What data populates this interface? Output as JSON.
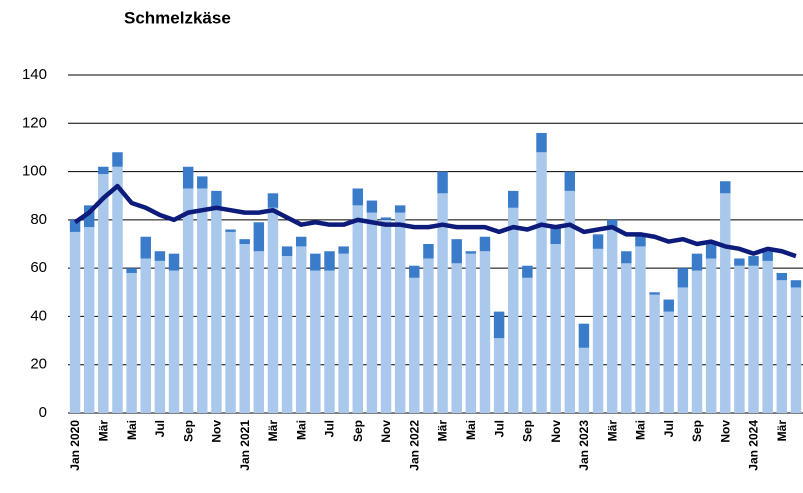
{
  "chart_data": {
    "type": "bar",
    "stacked": true,
    "title": "Schmelzkäse",
    "categories": [
      "Jan 2020",
      null,
      "Mär",
      null,
      "Mai",
      null,
      "Jul",
      null,
      "Sep",
      null,
      "Nov",
      null,
      "Jan 2021",
      null,
      "Mär",
      null,
      "Mai",
      null,
      "Jul",
      null,
      "Sep",
      null,
      "Nov",
      null,
      "Jan 2022",
      null,
      "Mär",
      null,
      "Mai",
      null,
      "Jul",
      null,
      "Sep",
      null,
      "Nov",
      null,
      "Jan 2023",
      null,
      "Mär",
      null,
      "Mai",
      null,
      "Jul",
      null,
      "Sep",
      null,
      "Nov",
      null,
      "Jan 2024",
      null,
      "Mär",
      null
    ],
    "series": [
      {
        "type": "bar",
        "color": "#a9c8ec",
        "values": [
          75,
          77,
          99,
          102,
          58,
          64,
          63,
          59,
          93,
          93,
          85,
          75,
          70,
          67,
          85,
          65,
          69,
          59,
          59,
          66,
          86,
          83,
          80,
          83,
          56,
          64,
          91,
          62,
          66,
          67,
          31,
          85,
          56,
          108,
          70,
          92,
          27,
          68,
          76,
          62,
          69,
          49,
          42,
          52,
          59,
          64,
          91,
          61,
          61,
          63,
          55,
          52
        ]
      },
      {
        "type": "bar",
        "color": "#3a7cc9",
        "values": [
          5,
          9,
          3,
          6,
          2,
          9,
          4,
          7,
          9,
          5,
          7,
          1,
          2,
          12,
          6,
          4,
          4,
          7,
          8,
          3,
          7,
          5,
          1,
          3,
          5,
          6,
          9,
          10,
          1,
          6,
          11,
          7,
          5,
          8,
          7,
          8,
          10,
          6,
          4,
          5,
          5,
          1,
          5,
          8,
          7,
          6,
          5,
          3,
          4,
          4,
          3,
          3
        ]
      },
      {
        "type": "line",
        "color": "#0d1b7a",
        "values": [
          79,
          83,
          89,
          94,
          87,
          85,
          82,
          80,
          83,
          84,
          85,
          84,
          83,
          83,
          84,
          81,
          78,
          79,
          78,
          78,
          80,
          79,
          78,
          78,
          77,
          77,
          78,
          77,
          77,
          77,
          75,
          77,
          76,
          78,
          77,
          78,
          75,
          76,
          77,
          74,
          74,
          73,
          71,
          72,
          70,
          71,
          69,
          68,
          66,
          68,
          67,
          65
        ]
      }
    ],
    "ylim": [
      0,
      140
    ],
    "yticks": [
      0,
      20,
      40,
      60,
      80,
      100,
      120,
      140
    ],
    "grid": true
  }
}
